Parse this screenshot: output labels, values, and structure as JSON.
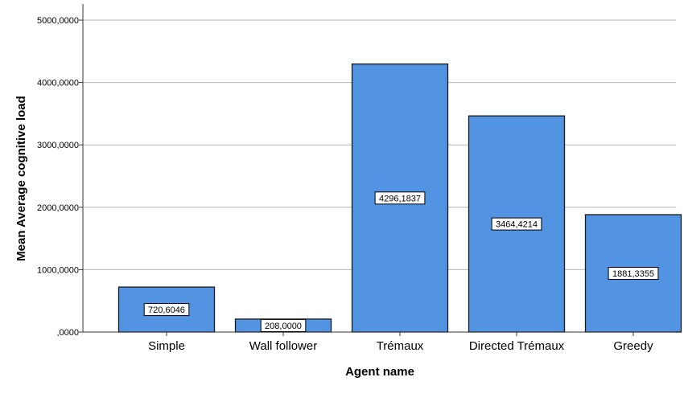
{
  "chart_data": {
    "type": "bar",
    "title": "",
    "xlabel": "Agent name",
    "ylabel": "Mean Average cognitive load",
    "categories": [
      "Simple",
      "Wall follower",
      "Trémaux",
      "Directed Trémaux",
      "Greedy"
    ],
    "values": [
      720.6046,
      208.0,
      4296.1837,
      3464.4214,
      1881.3355
    ],
    "data_labels": [
      "720,6046",
      "208,0000",
      "4296,1837",
      "3464,4214",
      "1881,3355"
    ],
    "y_ticks": [
      0,
      1000,
      2000,
      3000,
      4000,
      5000
    ],
    "y_tick_labels": [
      ",0000",
      "1000,0000",
      "2000,0000",
      "3000,0000",
      "4000,0000",
      "5000,0000"
    ],
    "ylim": [
      0,
      5000
    ],
    "grid": "horizontal",
    "bar_color": "#5294e2",
    "bar_edge_color": "#1a1a1a"
  }
}
